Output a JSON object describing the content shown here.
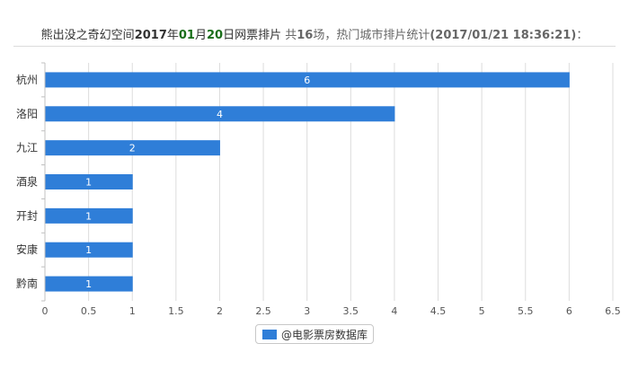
{
  "title": {
    "movie": "熊出没之奇幻空间",
    "year": "2017",
    "y_suffix": "年",
    "month": "01",
    "m_suffix": "月",
    "day": "20",
    "d_suffix": "日网票排片",
    "total_prefix": " 共",
    "total": "16",
    "total_suffix": "场，热门城市排片统计",
    "timestamp": "(2017/01/21 18:36:21)",
    "colon": "："
  },
  "legend": {
    "label": "@电影票房数据库"
  },
  "colors": {
    "bar": "#2f7ed8",
    "grid": "#dcdcdc",
    "axis": "#c0c0c0"
  },
  "chart_data": {
    "type": "bar",
    "orientation": "horizontal",
    "categories": [
      "杭州",
      "洛阳",
      "九江",
      "酒泉",
      "开封",
      "安康",
      "黔南"
    ],
    "series": [
      {
        "name": "@电影票房数据库",
        "values": [
          6,
          4,
          2,
          1,
          1,
          1,
          1
        ]
      }
    ],
    "xlim": [
      0,
      6.5
    ],
    "xticks": [
      "0",
      "0.5",
      "1",
      "1.5",
      "2",
      "2.5",
      "3",
      "3.5",
      "4",
      "4.5",
      "5",
      "5.5",
      "6",
      "6.5"
    ],
    "grid": true,
    "legend_position": "bottom-center",
    "data_labels": true
  }
}
